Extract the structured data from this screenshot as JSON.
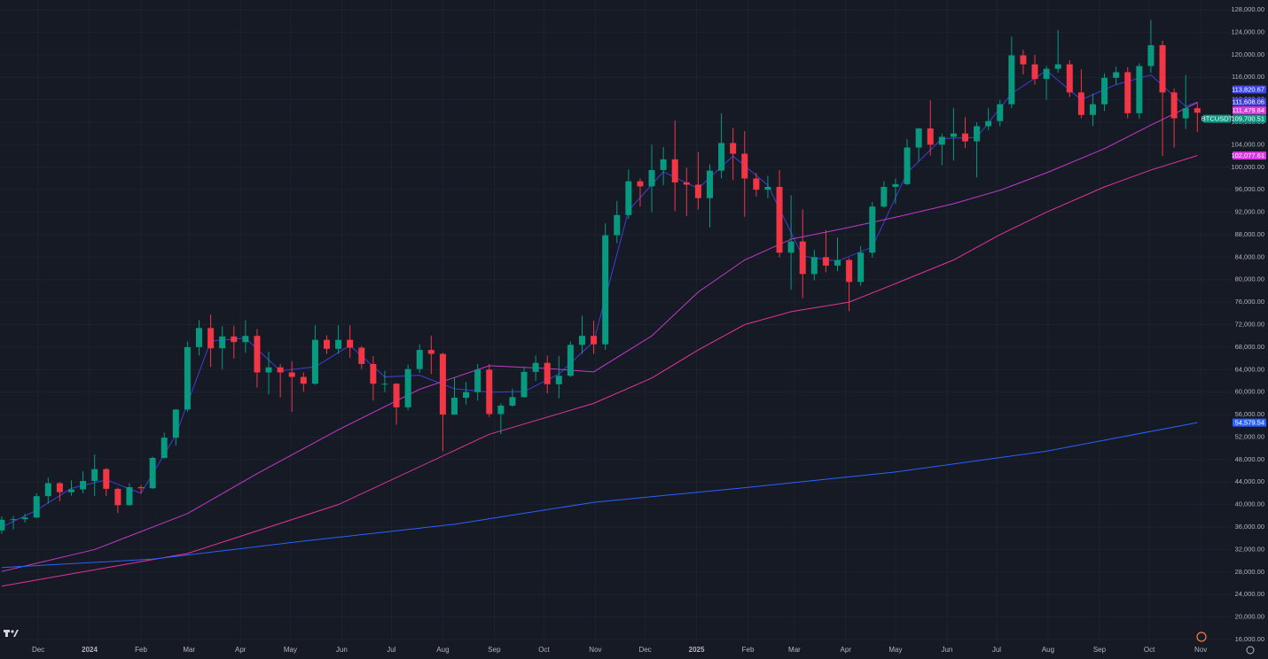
{
  "chart_data": {
    "type": "candlestick",
    "symbol": "BTCUSDT",
    "up_color": "#089981",
    "down_color": "#f23645",
    "grid": true,
    "xlim": [
      -0.15,
      105.88
    ],
    "ylim": [
      15370,
      129740
    ],
    "xticks": [
      {
        "value": 3.14,
        "label": "Dec"
      },
      {
        "value": 7.57,
        "label": "2024"
      },
      {
        "value": 12.0,
        "label": "Feb"
      },
      {
        "value": 16.14,
        "label": "Mar"
      },
      {
        "value": 20.57,
        "label": "Apr"
      },
      {
        "value": 24.86,
        "label": "May"
      },
      {
        "value": 29.29,
        "label": "Jun"
      },
      {
        "value": 33.57,
        "label": "Jul"
      },
      {
        "value": 38.0,
        "label": "Aug"
      },
      {
        "value": 42.43,
        "label": "Sep"
      },
      {
        "value": 46.71,
        "label": "Oct"
      },
      {
        "value": 51.14,
        "label": "Nov"
      },
      {
        "value": 55.43,
        "label": "Dec"
      },
      {
        "value": 59.86,
        "label": "2025"
      },
      {
        "value": 64.29,
        "label": "Feb"
      },
      {
        "value": 68.29,
        "label": "Mar"
      },
      {
        "value": 72.71,
        "label": "Apr"
      },
      {
        "value": 77.0,
        "label": "May"
      },
      {
        "value": 81.43,
        "label": "Jun"
      },
      {
        "value": 85.71,
        "label": "Jul"
      },
      {
        "value": 90.14,
        "label": "Aug"
      },
      {
        "value": 94.57,
        "label": "Sep"
      },
      {
        "value": 98.86,
        "label": "Oct"
      },
      {
        "value": 103.29,
        "label": "Nov"
      }
    ],
    "yticks": [
      {
        "value": 16000,
        "label": "16,000.00"
      },
      {
        "value": 20000,
        "label": "20,000.00"
      },
      {
        "value": 24000,
        "label": "24,000.00"
      },
      {
        "value": 28000,
        "label": "28,000.00"
      },
      {
        "value": 32000,
        "label": "32,000.00"
      },
      {
        "value": 36000,
        "label": "36,000.00"
      },
      {
        "value": 40000,
        "label": "40,000.00"
      },
      {
        "value": 44000,
        "label": "44,000.00"
      },
      {
        "value": 48000,
        "label": "48,000.00"
      },
      {
        "value": 52000,
        "label": "52,000.00"
      },
      {
        "value": 56000,
        "label": "56,000.00"
      },
      {
        "value": 60000,
        "label": "60,000.00"
      },
      {
        "value": 64000,
        "label": "64,000.00"
      },
      {
        "value": 68000,
        "label": "68,000.00"
      },
      {
        "value": 72000,
        "label": "72,000.00"
      },
      {
        "value": 76000,
        "label": "76,000.00"
      },
      {
        "value": 80000,
        "label": "80,000.00"
      },
      {
        "value": 84000,
        "label": "84,000.00"
      },
      {
        "value": 88000,
        "label": "88,000.00"
      },
      {
        "value": 92000,
        "label": "92,000.00"
      },
      {
        "value": 96000,
        "label": "96,000.00"
      },
      {
        "value": 100000,
        "label": "100,000.00"
      },
      {
        "value": 104000,
        "label": "104,000.00"
      },
      {
        "value": 108000,
        "label": "108,000.00"
      },
      {
        "value": 112000,
        "label": "112,000.00"
      },
      {
        "value": 116000,
        "label": "116,000.00"
      },
      {
        "value": 120000,
        "label": "120,000.00"
      },
      {
        "value": 124000,
        "label": "124,000.00"
      },
      {
        "value": 128000,
        "label": "128,000.00"
      }
    ],
    "open": [
      35400,
      37300,
      37400,
      37700,
      41500,
      43800,
      42200,
      42700,
      44200,
      46300,
      42800,
      39900,
      43100,
      42900,
      48300,
      51900,
      56900,
      68000,
      71400,
      67800,
      69900,
      68900,
      70000,
      63500,
      64400,
      63500,
      62700,
      61500,
      69300,
      67700,
      69300,
      67900,
      65000,
      61500,
      61500,
      57300,
      64100,
      67500,
      66800,
      56000,
      59000,
      60000,
      64000,
      56100,
      57600,
      59100,
      63600,
      65200,
      61400,
      62900,
      68400,
      70000,
      68500,
      87900,
      91500,
      97500,
      96600,
      99500,
      101400,
      97300,
      96900,
      94500,
      99400,
      104300,
      102400,
      98000,
      96000,
      96500,
      84800,
      86800,
      81000,
      84000,
      82500,
      83500,
      79600,
      84800,
      93000,
      96500,
      97000,
      103500,
      106900,
      104000,
      105400,
      106000,
      104600,
      107300,
      108200,
      111200,
      119900,
      118300,
      115700,
      117500,
      118300,
      113300,
      109300,
      111200,
      115900,
      116900,
      109600,
      118000,
      121700,
      113300,
      108700,
      110500
    ],
    "high": [
      37900,
      38000,
      38400,
      42000,
      44800,
      44000,
      44300,
      45900,
      48900,
      46500,
      43000,
      43800,
      43500,
      48500,
      52800,
      57000,
      69000,
      72800,
      73800,
      71700,
      71800,
      72800,
      71200,
      67200,
      65000,
      65500,
      63500,
      71900,
      70100,
      71900,
      71900,
      68200,
      66400,
      63800,
      61600,
      64900,
      68500,
      70000,
      67000,
      62700,
      61800,
      65000,
      65000,
      58000,
      60600,
      64500,
      66500,
      66500,
      66400,
      69000,
      73600,
      72700,
      90000,
      94000,
      99600,
      98000,
      104000,
      103600,
      108300,
      99900,
      102700,
      100500,
      109600,
      107000,
      106400,
      99000,
      98500,
      99500,
      95000,
      92500,
      85300,
      88800,
      87500,
      83800,
      86000,
      93800,
      97500,
      98000,
      105000,
      107000,
      111900,
      106000,
      110500,
      108900,
      108000,
      110500,
      112000,
      123200,
      120900,
      120000,
      118000,
      124400,
      119000,
      117400,
      113100,
      116700,
      117900,
      117800,
      118500,
      126200,
      122500,
      114000,
      116400,
      111600
    ],
    "low": [
      34800,
      35600,
      36800,
      37600,
      40200,
      40600,
      41600,
      42000,
      41500,
      41500,
      38500,
      39800,
      42000,
      42800,
      48200,
      50500,
      56500,
      66500,
      64500,
      64100,
      66000,
      67000,
      60800,
      59600,
      59100,
      56500,
      60100,
      61300,
      66800,
      66800,
      66100,
      64100,
      58500,
      60000,
      54200,
      56800,
      63400,
      63200,
      49500,
      56000,
      57800,
      58500,
      55600,
      52500,
      57400,
      59000,
      62000,
      59800,
      58900,
      62700,
      66800,
      66800,
      67500,
      86500,
      90800,
      93000,
      92000,
      96800,
      92200,
      91300,
      92500,
      89300,
      98000,
      97700,
      91200,
      94800,
      94500,
      84000,
      78200,
      76700,
      79900,
      81300,
      81500,
      74400,
      78900,
      83900,
      92800,
      93500,
      96800,
      101000,
      102100,
      100400,
      101200,
      103400,
      98200,
      106600,
      107300,
      110500,
      116500,
      114700,
      112000,
      116800,
      112500,
      108700,
      107300,
      110000,
      114700,
      108700,
      108600,
      116800,
      102000,
      103500,
      106800,
      106300
    ],
    "close": [
      37300,
      37400,
      37700,
      41500,
      43800,
      42200,
      42700,
      44200,
      46300,
      42800,
      39900,
      43100,
      42900,
      48300,
      51900,
      56900,
      68000,
      71400,
      67800,
      69900,
      68900,
      70000,
      63500,
      64400,
      63500,
      62700,
      61500,
      69300,
      67700,
      69300,
      67900,
      65000,
      61500,
      61500,
      57300,
      64100,
      67500,
      66800,
      56000,
      59000,
      60000,
      64000,
      56100,
      57600,
      59100,
      63600,
      65200,
      61400,
      62900,
      68400,
      70000,
      68500,
      87900,
      91500,
      97500,
      96600,
      99500,
      101400,
      97300,
      96900,
      94500,
      99400,
      104300,
      102400,
      98000,
      96000,
      96500,
      84800,
      86800,
      81000,
      84000,
      82500,
      83500,
      79600,
      84800,
      93000,
      96500,
      97000,
      103500,
      106900,
      104000,
      105400,
      106000,
      104600,
      107300,
      108200,
      111200,
      119900,
      118300,
      115700,
      117500,
      118300,
      113300,
      109300,
      111200,
      115900,
      116900,
      109600,
      118000,
      121700,
      113300,
      108700,
      110500,
      109700.51
    ],
    "series": [
      {
        "color": "#3f3fd6",
        "x": [
          0,
          3,
          6,
          9,
          12,
          15,
          18,
          21,
          24,
          27,
          30,
          33,
          36,
          39,
          42,
          45,
          48,
          51,
          54,
          57,
          60,
          63,
          66,
          69,
          72,
          75,
          78,
          81,
          84,
          87,
          90,
          93,
          96,
          99,
          102,
          103
        ],
        "values": [
          36000,
          39000,
          42900,
          44400,
          42000,
          52400,
          69100,
          69600,
          63800,
          64500,
          68300,
          62700,
          63000,
          60600,
          60000,
          60100,
          63200,
          69000,
          92300,
          99200,
          96200,
          102000,
          96800,
          84200,
          83300,
          85800,
          99000,
          105100,
          105300,
          113100,
          117200,
          112000,
          114700,
          116400,
          110800,
          111608.06
        ]
      },
      {
        "color": "#c23ac9",
        "x": [
          0,
          8,
          16,
          22,
          29,
          36,
          42,
          47,
          51,
          56,
          60,
          64,
          68,
          73,
          77,
          82,
          86,
          90,
          95,
          99,
          103
        ],
        "values": [
          28100,
          32000,
          38400,
          45500,
          53300,
          60500,
          64700,
          64200,
          63600,
          70000,
          77800,
          83500,
          87200,
          89300,
          91100,
          93500,
          95900,
          99000,
          103300,
          107500,
          111479.84
        ]
      },
      {
        "color": "#e0349a",
        "x": [
          0,
          16,
          29,
          42,
          51,
          56,
          60,
          64,
          68,
          73,
          77,
          82,
          86,
          90,
          95,
          99,
          103
        ],
        "values": [
          25500,
          31300,
          40000,
          52500,
          58000,
          62500,
          67500,
          72000,
          74300,
          76000,
          79300,
          83500,
          88000,
          92000,
          96500,
          99500,
          102077.61
        ]
      },
      {
        "color": "#2962ff",
        "x": [
          0,
          13,
          26,
          39,
          51,
          64,
          77,
          90,
          103
        ],
        "values": [
          28800,
          30300,
          33500,
          36500,
          40400,
          43000,
          45800,
          49500,
          54579.54
        ]
      }
    ],
    "price_labels": [
      {
        "value": 113820.67,
        "label": "113,820.67",
        "color": "#3b46e6"
      },
      {
        "value": 111608.06,
        "label": "111,608.06",
        "color": "#3f3fd6"
      },
      {
        "value": 111479.84,
        "label": "111,479.84",
        "color": "#d63ae0"
      },
      {
        "value": 109700.51,
        "label": "109,700.51",
        "color": "#089981"
      },
      {
        "value": 102077.61,
        "label": "102,077.61",
        "color": "#d63ae0"
      },
      {
        "value": 54579.54,
        "label": "54,579.54",
        "color": "#2962ff"
      }
    ]
  }
}
